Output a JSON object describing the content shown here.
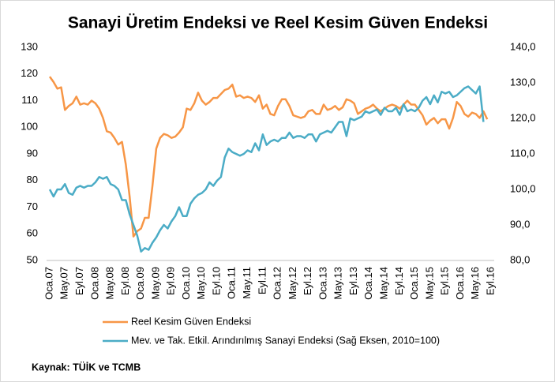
{
  "chart_data": {
    "type": "line",
    "title": "Sanayi Üretim Endeksi ve Reel Kesim Güven Endeksi",
    "source": "Kaynak: TÜİK ve TCMB",
    "categories": [
      "Oca.07",
      null,
      null,
      null,
      "May.07",
      null,
      null,
      null,
      "Eyl.07",
      null,
      null,
      null,
      "Oca.08",
      null,
      null,
      null,
      "May.08",
      null,
      null,
      null,
      "Eyl.08",
      null,
      null,
      null,
      "Oca.09",
      null,
      null,
      null,
      "May.09",
      null,
      null,
      null,
      "Eyl.09",
      null,
      null,
      null,
      "Oca.10",
      null,
      null,
      null,
      "May.10",
      null,
      null,
      null,
      "Eyl.10",
      null,
      null,
      null,
      "Oca.11",
      null,
      null,
      null,
      "May.11",
      null,
      null,
      null,
      "Eyl.11",
      null,
      null,
      null,
      "Oca.12",
      null,
      null,
      null,
      "May.12",
      null,
      null,
      null,
      "Eyl.12",
      null,
      null,
      null,
      "Oca.13",
      null,
      null,
      null,
      "May.13",
      null,
      null,
      null,
      "Eyl.13",
      null,
      null,
      null,
      "Oca.14",
      null,
      null,
      null,
      "May.14",
      null,
      null,
      null,
      "Eyl.14",
      null,
      null,
      null,
      "Oca.15",
      null,
      null,
      null,
      "May.15",
      null,
      null,
      null,
      "Eyl.15",
      null,
      null,
      null,
      "Oca.16",
      null,
      null,
      null,
      "May.16",
      null,
      null,
      null,
      "Eyl.16"
    ],
    "series": [
      {
        "name": "Reel Kesim Güven Endeksi",
        "color": "#f79646",
        "values": [
          119,
          117,
          114.5,
          115,
          106.5,
          108,
          109,
          111.5,
          108.5,
          109,
          108.5,
          110,
          109,
          107,
          103.5,
          98.5,
          98,
          96,
          93.5,
          94.5,
          86,
          74,
          59,
          61,
          62,
          66,
          66,
          78,
          92,
          96,
          97.5,
          97,
          96,
          96.5,
          98,
          100,
          107,
          106.5,
          109,
          113,
          110,
          108.5,
          109.5,
          111,
          111,
          112.5,
          114,
          114.5,
          116,
          111.5,
          112,
          111,
          111.5,
          111,
          109.5,
          112,
          107,
          108.5,
          105,
          104.5,
          108,
          110.5,
          110.5,
          108,
          104.5,
          104,
          103.5,
          104,
          106,
          106.5,
          105,
          105,
          108.5,
          106.5,
          107,
          108,
          106.5,
          107.5,
          110.5,
          110,
          109,
          105,
          106,
          107,
          107.5,
          108.5,
          107,
          106,
          107,
          108,
          108.5,
          108,
          107,
          108.5,
          110,
          108.5,
          108.5,
          106.5,
          104.5,
          101,
          102.5,
          103.5,
          101.5,
          103,
          103,
          99.5,
          103.5,
          109.5,
          108,
          105,
          104,
          105.5,
          105,
          103.5,
          106,
          103,
          null
        ]
      },
      {
        "name": "Mev. ve Tak. Etkil. Arındırılmış Sanayi Endeksi (Sağ Eksen, 2010=100)",
        "color": "#4bacc6",
        "axis": "y2",
        "values": [
          100,
          98,
          100,
          100,
          101.5,
          99,
          98.5,
          100.5,
          101,
          100.5,
          101,
          101,
          102,
          103.5,
          103,
          103.5,
          101.5,
          101,
          100,
          97,
          97,
          93,
          90,
          87,
          82.5,
          83.5,
          83,
          85,
          86.5,
          88.5,
          90,
          89,
          91,
          92.5,
          95,
          92.5,
          92.5,
          96,
          97.5,
          98.5,
          99,
          100,
          102,
          101,
          102.5,
          103.5,
          109,
          111.5,
          110.5,
          110,
          109.5,
          110,
          111,
          110.5,
          113,
          111,
          115.5,
          112.5,
          113.5,
          114,
          113.5,
          114.5,
          114.5,
          116,
          114.5,
          115,
          115,
          114.5,
          115.5,
          115.5,
          113.5,
          115.5,
          116,
          116.5,
          116,
          117.5,
          119,
          119,
          115,
          120,
          119.5,
          120,
          120.5,
          122,
          121.5,
          122,
          122.5,
          121,
          123,
          122,
          122,
          123,
          121,
          124,
          122,
          122.5,
          122,
          123,
          125,
          126,
          124,
          126.5,
          124.5,
          127.5,
          127,
          127.5,
          126,
          126.5,
          127.5,
          128.5,
          129,
          128,
          127,
          129,
          119,
          null,
          null
        ]
      }
    ],
    "ylim": [
      50,
      130
    ],
    "yticks": [
      50,
      60,
      70,
      80,
      90,
      100,
      110,
      120,
      130
    ],
    "y2lim": [
      80,
      140
    ],
    "y2ticks": [
      {
        "value": 80,
        "label": "80,0"
      },
      {
        "value": 90,
        "label": "90,0"
      },
      {
        "value": 100,
        "label": "100,0"
      },
      {
        "value": 110,
        "label": "110,0"
      },
      {
        "value": 120,
        "label": "120,0"
      },
      {
        "value": 130,
        "label": "130,0"
      },
      {
        "value": 140,
        "label": "140,0"
      }
    ],
    "legend": "bottom-left"
  }
}
